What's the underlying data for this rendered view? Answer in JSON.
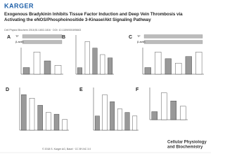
{
  "header": {
    "logo": "KARGER",
    "title": "Exogenous Bradykinin Inhibits Tissue Factor Induction and Deep Vein Thrombosis via Activating the eNOS/Phosphoinositide 3-Kinase/Akt Signaling Pathway",
    "citation": "Cell Physiol Biochem 2018;51:1802-1816 · DOI: 10.1159/000495663"
  },
  "panels": [
    {
      "label": "A",
      "blot_labels": [
        "TF",
        "β-actin"
      ],
      "ylim": [
        0,
        1.2
      ],
      "values": [
        0.3,
        1.0,
        0.6,
        0.4
      ]
    },
    {
      "label": "B",
      "ylim": [
        0,
        1.2
      ],
      "values": [
        0.2,
        1.0,
        0.8,
        0.6,
        0.5
      ]
    },
    {
      "label": "C",
      "blot_labels": [
        "TF",
        "β-actin"
      ],
      "ylim": [
        0,
        1.2
      ],
      "values": [
        0.3,
        1.0,
        0.7,
        0.5,
        0.8,
        1.0
      ]
    },
    {
      "label": "D",
      "ylim": [
        0,
        1.2
      ],
      "values": [
        1.0,
        0.9,
        0.7,
        0.5,
        0.45,
        0.3
      ]
    },
    {
      "label": "E",
      "ylim": [
        0,
        1.2
      ],
      "values": [
        0.4,
        1.0,
        0.8,
        0.6,
        0.5,
        0.4
      ]
    },
    {
      "label": "F",
      "ylim": [
        0,
        1.2
      ],
      "values": [
        0.3,
        1.0,
        0.7,
        0.5
      ]
    }
  ],
  "footer": {
    "copyright": "© 2018 S. Karger AG, Basel · CC BY-NC 3.0",
    "journal": [
      "Cellular Physiology",
      "and Biochemistry"
    ]
  }
}
